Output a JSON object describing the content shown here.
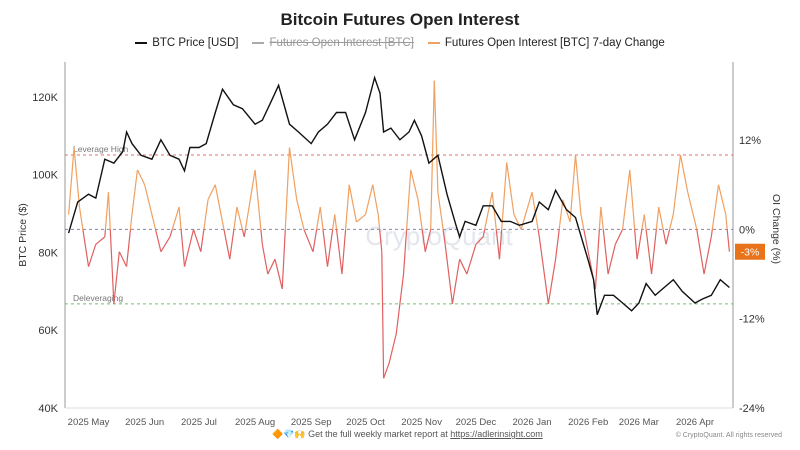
{
  "chart_data": {
    "type": "line",
    "title": "Bitcoin Futures Open Interest",
    "legend_placement": "top",
    "legend": [
      {
        "name": "BTC Price [USD]",
        "color": "#111111",
        "hidden": false
      },
      {
        "name": "Futures Open Interest [BTC]",
        "color": "#aaaaaa",
        "hidden": true
      },
      {
        "name": "Futures Open Interest [BTC] 7-day Change",
        "color": "#f0a060",
        "hidden": false
      }
    ],
    "ylabel_left": "BTC Price ($)",
    "ylabel_right": "OI Change (%)",
    "ylim_left": [
      40000,
      129000
    ],
    "ylim_right": [
      -24,
      22.5
    ],
    "xlim": [
      "2025-04-18",
      "2026-04-22"
    ],
    "yticks_left": [
      {
        "v": 40000,
        "label": "40K"
      },
      {
        "v": 60000,
        "label": "60K"
      },
      {
        "v": 80000,
        "label": "80K"
      },
      {
        "v": 100000,
        "label": "100K"
      },
      {
        "v": 120000,
        "label": "120K"
      }
    ],
    "yticks_right": [
      {
        "v": -24,
        "label": "-24%"
      },
      {
        "v": -12,
        "label": "-12%"
      },
      {
        "v": 0,
        "label": "0%"
      },
      {
        "v": 12,
        "label": "12%"
      }
    ],
    "xticks": [
      {
        "d": "2025-05-01",
        "label": "2025 May"
      },
      {
        "d": "2025-06-01",
        "label": "2025 Jun"
      },
      {
        "d": "2025-07-01",
        "label": "2025 Jul"
      },
      {
        "d": "2025-08-01",
        "label": "2025 Aug"
      },
      {
        "d": "2025-09-01",
        "label": "2025 Sep"
      },
      {
        "d": "2025-10-01",
        "label": "2025 Oct"
      },
      {
        "d": "2025-11-01",
        "label": "2025 Nov"
      },
      {
        "d": "2025-12-01",
        "label": "2025 Dec"
      },
      {
        "d": "2026-01-01",
        "label": "2026 Jan"
      },
      {
        "d": "2026-02-01",
        "label": "2026 Feb"
      },
      {
        "d": "2026-03-01",
        "label": "2026 Mar"
      },
      {
        "d": "2026-04-01",
        "label": "2026 Apr"
      }
    ],
    "reference_lines": [
      {
        "label": "Leverage High",
        "value": 10,
        "color": "#e07070"
      },
      {
        "label": "Deleveraging",
        "value": -10,
        "color": "#70c070"
      },
      {
        "label": "",
        "value": 0,
        "color": "#8888aa"
      }
    ],
    "last_value_label": {
      "text": "-3%",
      "color": "#e8731a"
    },
    "colors": {
      "positive": "#f0a060",
      "negative": "#e06060",
      "price": "#111111"
    },
    "btc_price": [
      [
        "2025-04-20",
        85000
      ],
      [
        "2025-04-25",
        93000
      ],
      [
        "2025-05-01",
        95000
      ],
      [
        "2025-05-05",
        94000
      ],
      [
        "2025-05-10",
        104000
      ],
      [
        "2025-05-15",
        103000
      ],
      [
        "2025-05-20",
        106000
      ],
      [
        "2025-05-22",
        111000
      ],
      [
        "2025-05-25",
        108000
      ],
      [
        "2025-05-30",
        105000
      ],
      [
        "2025-06-05",
        104000
      ],
      [
        "2025-06-10",
        109000
      ],
      [
        "2025-06-15",
        105000
      ],
      [
        "2025-06-20",
        104000
      ],
      [
        "2025-06-23",
        101000
      ],
      [
        "2025-06-26",
        107000
      ],
      [
        "2025-07-01",
        107000
      ],
      [
        "2025-07-05",
        108000
      ],
      [
        "2025-07-10",
        116000
      ],
      [
        "2025-07-14",
        122000
      ],
      [
        "2025-07-20",
        118000
      ],
      [
        "2025-07-25",
        117000
      ],
      [
        "2025-08-01",
        113000
      ],
      [
        "2025-08-05",
        114000
      ],
      [
        "2025-08-10",
        119000
      ],
      [
        "2025-08-14",
        123000
      ],
      [
        "2025-08-20",
        113000
      ],
      [
        "2025-08-25",
        111000
      ],
      [
        "2025-09-01",
        108000
      ],
      [
        "2025-09-05",
        111000
      ],
      [
        "2025-09-10",
        113000
      ],
      [
        "2025-09-15",
        116000
      ],
      [
        "2025-09-20",
        116000
      ],
      [
        "2025-09-25",
        109000
      ],
      [
        "2025-10-01",
        116000
      ],
      [
        "2025-10-06",
        125000
      ],
      [
        "2025-10-09",
        121000
      ],
      [
        "2025-10-11",
        111000
      ],
      [
        "2025-10-15",
        112000
      ],
      [
        "2025-10-20",
        109000
      ],
      [
        "2025-10-25",
        111000
      ],
      [
        "2025-10-28",
        114000
      ],
      [
        "2025-11-01",
        110000
      ],
      [
        "2025-11-05",
        103000
      ],
      [
        "2025-11-10",
        105000
      ],
      [
        "2025-11-15",
        95000
      ],
      [
        "2025-11-20",
        87000
      ],
      [
        "2025-11-22",
        84000
      ],
      [
        "2025-11-25",
        88000
      ],
      [
        "2025-12-01",
        87000
      ],
      [
        "2025-12-05",
        92000
      ],
      [
        "2025-12-10",
        92000
      ],
      [
        "2025-12-15",
        88000
      ],
      [
        "2025-12-20",
        88000
      ],
      [
        "2025-12-25",
        87000
      ],
      [
        "2026-01-01",
        88000
      ],
      [
        "2026-01-05",
        93000
      ],
      [
        "2026-01-10",
        91000
      ],
      [
        "2026-01-14",
        96000
      ],
      [
        "2026-01-20",
        91000
      ],
      [
        "2026-01-25",
        89000
      ],
      [
        "2026-02-01",
        78000
      ],
      [
        "2026-02-04",
        73000
      ],
      [
        "2026-02-06",
        64000
      ],
      [
        "2026-02-10",
        69000
      ],
      [
        "2026-02-15",
        69000
      ],
      [
        "2026-02-20",
        67000
      ],
      [
        "2026-02-25",
        65000
      ],
      [
        "2026-03-01",
        67000
      ],
      [
        "2026-03-05",
        72000
      ],
      [
        "2026-03-10",
        69000
      ],
      [
        "2026-03-15",
        71000
      ],
      [
        "2026-03-20",
        73000
      ],
      [
        "2026-03-25",
        70000
      ],
      [
        "2026-04-01",
        67000
      ],
      [
        "2026-04-05",
        68000
      ],
      [
        "2026-04-10",
        69000
      ],
      [
        "2026-04-15",
        73000
      ],
      [
        "2026-04-20",
        71000
      ]
    ],
    "oi_7d_change": [
      [
        "2025-04-20",
        2
      ],
      [
        "2025-04-23",
        11
      ],
      [
        "2025-04-26",
        3
      ],
      [
        "2025-05-01",
        -5
      ],
      [
        "2025-05-05",
        -2
      ],
      [
        "2025-05-10",
        -1
      ],
      [
        "2025-05-12",
        5
      ],
      [
        "2025-05-15",
        -10
      ],
      [
        "2025-05-18",
        -3
      ],
      [
        "2025-05-22",
        -5
      ],
      [
        "2025-05-25",
        2
      ],
      [
        "2025-05-28",
        8
      ],
      [
        "2025-06-01",
        6
      ],
      [
        "2025-06-05",
        2
      ],
      [
        "2025-06-10",
        -3
      ],
      [
        "2025-06-15",
        -1
      ],
      [
        "2025-06-20",
        3
      ],
      [
        "2025-06-23",
        -5
      ],
      [
        "2025-06-28",
        0
      ],
      [
        "2025-07-02",
        -3
      ],
      [
        "2025-07-06",
        4
      ],
      [
        "2025-07-10",
        6
      ],
      [
        "2025-07-14",
        1
      ],
      [
        "2025-07-18",
        -4
      ],
      [
        "2025-07-22",
        3
      ],
      [
        "2025-07-26",
        -1
      ],
      [
        "2025-08-01",
        8
      ],
      [
        "2025-08-05",
        -2
      ],
      [
        "2025-08-08",
        -6
      ],
      [
        "2025-08-12",
        -4
      ],
      [
        "2025-08-16",
        -8
      ],
      [
        "2025-08-20",
        11
      ],
      [
        "2025-08-24",
        4
      ],
      [
        "2025-08-28",
        0
      ],
      [
        "2025-09-02",
        -3
      ],
      [
        "2025-09-06",
        3
      ],
      [
        "2025-09-10",
        -5
      ],
      [
        "2025-09-14",
        2
      ],
      [
        "2025-09-18",
        -6
      ],
      [
        "2025-09-22",
        6
      ],
      [
        "2025-09-26",
        1
      ],
      [
        "2025-10-01",
        2
      ],
      [
        "2025-10-05",
        6
      ],
      [
        "2025-10-08",
        2
      ],
      [
        "2025-10-10",
        -3
      ],
      [
        "2025-10-11",
        -20
      ],
      [
        "2025-10-14",
        -18
      ],
      [
        "2025-10-18",
        -14
      ],
      [
        "2025-10-22",
        -6
      ],
      [
        "2025-10-26",
        8
      ],
      [
        "2025-10-30",
        4
      ],
      [
        "2025-11-03",
        -3
      ],
      [
        "2025-11-06",
        0
      ],
      [
        "2025-11-08",
        20
      ],
      [
        "2025-11-10",
        5
      ],
      [
        "2025-11-14",
        -2
      ],
      [
        "2025-11-18",
        -10
      ],
      [
        "2025-11-22",
        -4
      ],
      [
        "2025-11-26",
        -6
      ],
      [
        "2025-12-01",
        -2
      ],
      [
        "2025-12-05",
        -1
      ],
      [
        "2025-12-10",
        5
      ],
      [
        "2025-12-14",
        -4
      ],
      [
        "2025-12-18",
        9
      ],
      [
        "2025-12-22",
        2
      ],
      [
        "2025-12-26",
        0
      ],
      [
        "2026-01-01",
        5
      ],
      [
        "2026-01-05",
        -1
      ],
      [
        "2026-01-10",
        -10
      ],
      [
        "2026-01-14",
        -4
      ],
      [
        "2026-01-18",
        4
      ],
      [
        "2026-01-22",
        1
      ],
      [
        "2026-01-25",
        10
      ],
      [
        "2026-01-28",
        2
      ],
      [
        "2026-02-01",
        -3
      ],
      [
        "2026-02-05",
        -8
      ],
      [
        "2026-02-08",
        3
      ],
      [
        "2026-02-12",
        -6
      ],
      [
        "2026-02-16",
        -2
      ],
      [
        "2026-02-20",
        0
      ],
      [
        "2026-02-24",
        8
      ],
      [
        "2026-02-28",
        -4
      ],
      [
        "2026-03-04",
        2
      ],
      [
        "2026-03-08",
        -6
      ],
      [
        "2026-03-12",
        3
      ],
      [
        "2026-03-16",
        -2
      ],
      [
        "2026-03-20",
        2
      ],
      [
        "2026-03-24",
        10
      ],
      [
        "2026-03-28",
        5
      ],
      [
        "2026-04-02",
        0
      ],
      [
        "2026-04-06",
        -6
      ],
      [
        "2026-04-10",
        -1
      ],
      [
        "2026-04-14",
        6
      ],
      [
        "2026-04-18",
        2
      ],
      [
        "2026-04-20",
        -3
      ]
    ]
  },
  "footer": {
    "emoji": "🔶💎🙌",
    "text": "Get the full weekly market report at",
    "link": "https://adlerinsight.com"
  },
  "copyright": "© CryptoQuant. All rights reserved"
}
